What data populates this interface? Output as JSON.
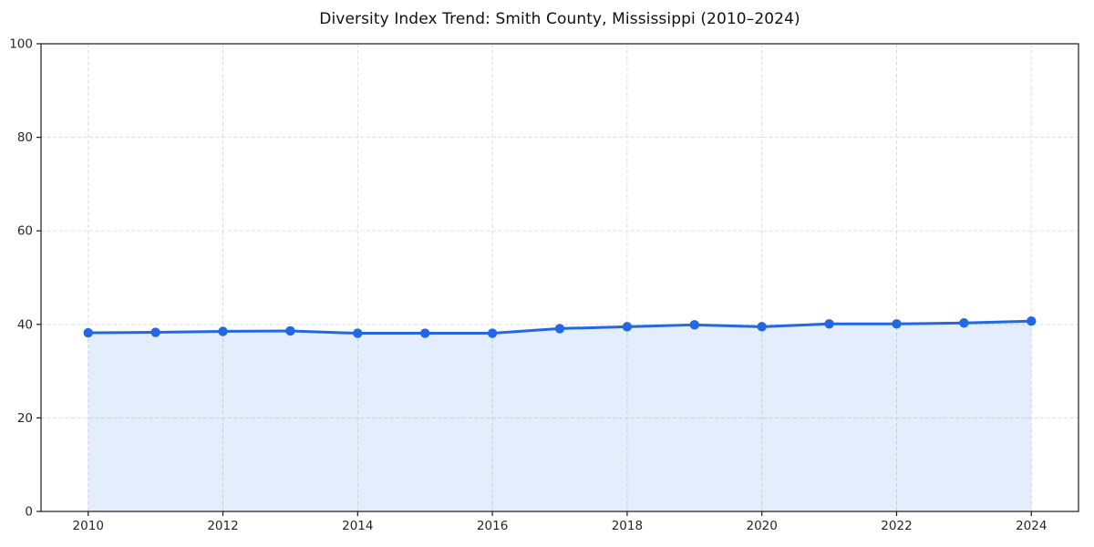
{
  "chart_data": {
    "type": "line",
    "title": "Diversity Index Trend: Smith County, Mississippi (2010–2024)",
    "x": [
      2010,
      2011,
      2012,
      2013,
      2014,
      2015,
      2016,
      2017,
      2018,
      2019,
      2020,
      2021,
      2022,
      2023,
      2024
    ],
    "series": [
      {
        "name": "Diversity Index",
        "values": [
          38.2,
          38.3,
          38.5,
          38.6,
          38.1,
          38.1,
          38.1,
          39.1,
          39.5,
          39.9,
          39.5,
          40.1,
          40.1,
          40.3,
          40.7
        ]
      }
    ],
    "xlabel": "",
    "ylabel": "",
    "xlim": [
      2009.3,
      2024.7
    ],
    "ylim": [
      0,
      100
    ],
    "x_ticks": [
      2010,
      2012,
      2014,
      2016,
      2018,
      2020,
      2022,
      2024
    ],
    "y_ticks": [
      0,
      20,
      40,
      60,
      80,
      100
    ],
    "grid": true,
    "grid_style": "dashed",
    "legend": false,
    "area_fill": true,
    "colors": {
      "line": "#2268e1",
      "marker": "#2268e1",
      "area": "rgba(34,104,225,0.12)",
      "grid": "#d9d9d9",
      "spine": "#1a1a1a",
      "tick_text": "#262626",
      "background": "#ffffff"
    }
  }
}
